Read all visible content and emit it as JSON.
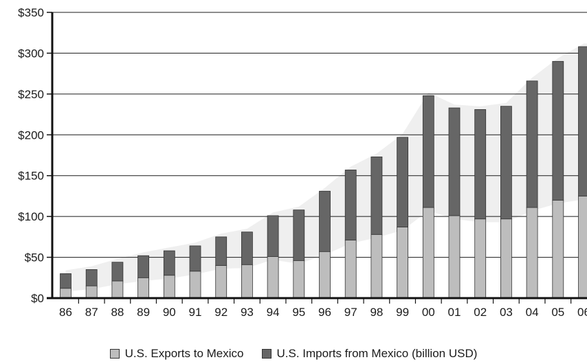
{
  "chart_data": {
    "type": "bar",
    "stacked": true,
    "categories": [
      "86",
      "87",
      "88",
      "89",
      "90",
      "91",
      "92",
      "93",
      "94",
      "95",
      "96",
      "97",
      "98",
      "99",
      "00",
      "01",
      "02",
      "03",
      "04",
      "05",
      "06"
    ],
    "series": [
      {
        "name": "U.S. Exports to Mexico",
        "color": "#bdbdbd",
        "values": [
          12,
          15,
          21,
          25,
          28,
          33,
          40,
          41,
          51,
          46,
          57,
          71,
          78,
          87,
          111,
          101,
          97,
          97,
          111,
          120,
          125
        ]
      },
      {
        "name": "U.S. Imports from Mexico (billion USD)",
        "color": "#666666",
        "values": [
          18,
          20,
          23,
          27,
          30,
          31,
          35,
          40,
          50,
          62,
          74,
          86,
          95,
          110,
          137,
          132,
          134,
          138,
          155,
          170,
          183
        ]
      }
    ],
    "band_color": "#efefef",
    "ylim": [
      0,
      350
    ],
    "yticks": [
      0,
      50,
      100,
      150,
      200,
      250,
      300,
      350
    ],
    "ytick_labels": [
      "$0",
      "$50",
      "$100",
      "$150",
      "$200",
      "$250",
      "$300",
      "$350"
    ],
    "grid": true,
    "legend_position": "bottom-center"
  }
}
